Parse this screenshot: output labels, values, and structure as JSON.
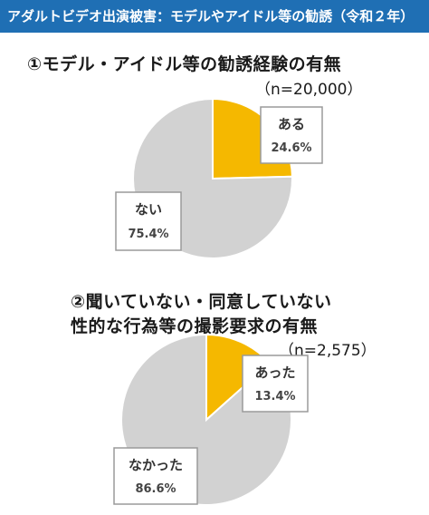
{
  "header": {
    "title": "アダルトビデオ出演被害：モデルやアイドル等の勧誘（令和２年）"
  },
  "colors": {
    "header_bg": "#1f6fb4",
    "highlight": "#f5b800",
    "base": "#d2d2d2",
    "label_border": "#9a9a9a"
  },
  "chart_data": [
    {
      "type": "pie",
      "title": "①モデル・アイドル等の勧誘経験の有無",
      "n_label": "（n=20,000）",
      "slices": [
        {
          "label": "ある",
          "value_label": "24.6%",
          "value": 24.6,
          "color": "#f5b800"
        },
        {
          "label": "ない",
          "value_label": "75.4%",
          "value": 75.4,
          "color": "#d2d2d2"
        }
      ]
    },
    {
      "type": "pie",
      "title_lines": [
        "②聞いていない・同意していない",
        "性的な行為等の撮影要求の有無"
      ],
      "n_label": "（n=2,575）",
      "slices": [
        {
          "label": "あった",
          "value_label": "13.4%",
          "value": 13.4,
          "color": "#f5b800"
        },
        {
          "label": "なかった",
          "value_label": "86.6%",
          "value": 86.6,
          "color": "#d2d2d2"
        }
      ]
    }
  ]
}
